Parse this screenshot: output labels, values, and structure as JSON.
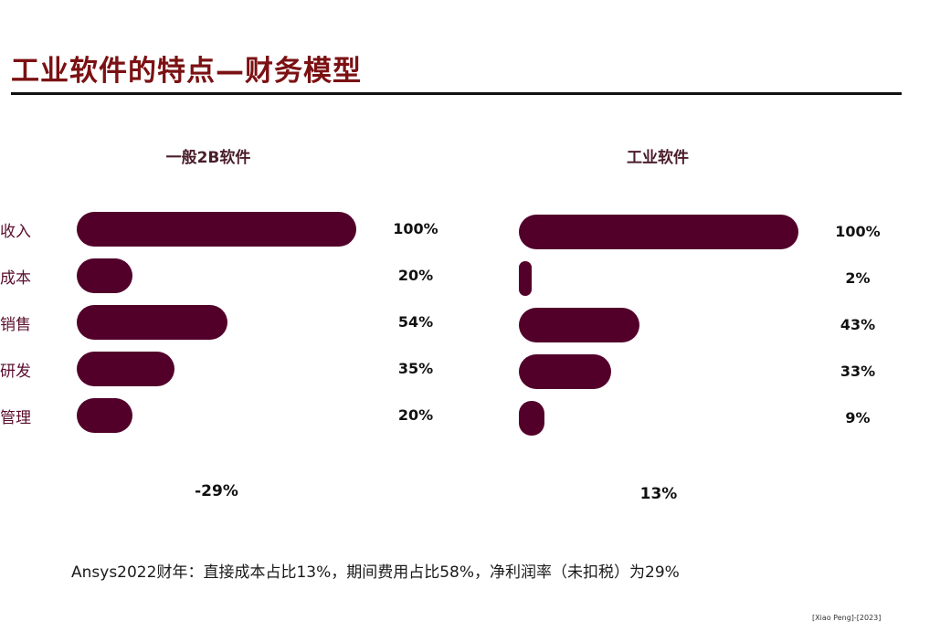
{
  "page_title": "工业软件的特点—财务模型",
  "footnote": "Ansys2022财年：直接成本占比13%，期间费用占比58%，净利润率（未扣税）为29%",
  "source": "[Xiao Peng]-[2023]",
  "colors": {
    "bar": "#52002a",
    "title": "#7b1113",
    "category_label": "#5a0f2e"
  },
  "chart_data": [
    {
      "type": "bar",
      "orientation": "horizontal",
      "title": "一般2B软件",
      "categories": [
        "收入",
        "成本",
        "销售",
        "研发",
        "管理"
      ],
      "values": [
        100,
        20,
        54,
        35,
        20
      ],
      "value_labels": [
        "100%",
        "20%",
        "54%",
        "35%",
        "20%"
      ],
      "net_label": "-29%",
      "xlim": [
        0,
        100
      ]
    },
    {
      "type": "bar",
      "orientation": "horizontal",
      "title": "工业软件",
      "categories": [
        "收入",
        "成本",
        "销售",
        "研发",
        "管理"
      ],
      "values": [
        100,
        2,
        43,
        33,
        9
      ],
      "value_labels": [
        "100%",
        "2%",
        "43%",
        "33%",
        "9%"
      ],
      "net_label": "13%",
      "xlim": [
        0,
        100
      ]
    }
  ]
}
